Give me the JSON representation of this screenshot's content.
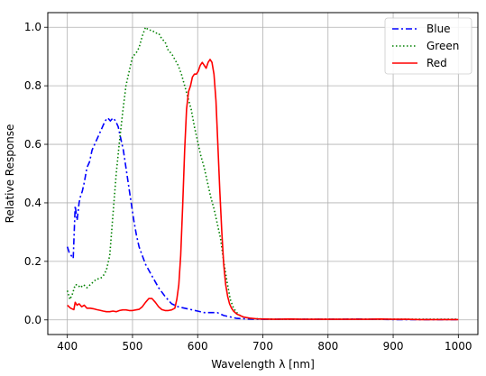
{
  "chart_data": {
    "type": "line",
    "title": "",
    "xlabel": "Wavelength λ [nm]",
    "ylabel": "Relative Response",
    "xlim": [
      370,
      1030
    ],
    "ylim": [
      -0.05,
      1.05
    ],
    "xticks": [
      400,
      500,
      600,
      700,
      800,
      900,
      1000
    ],
    "yticks": [
      0.0,
      0.2,
      0.4,
      0.6,
      0.8,
      1.0
    ],
    "xtick_labels": [
      "400",
      "500",
      "600",
      "700",
      "800",
      "900",
      "1000"
    ],
    "ytick_labels": [
      "0.0",
      "0.2",
      "0.4",
      "0.6",
      "0.8",
      "1.0"
    ],
    "grid": true,
    "legend_position": "top-right",
    "series": [
      {
        "name": "Blue",
        "color": "#0000ff",
        "style": "dashdot",
        "x": [
          400,
          403,
          406,
          409,
          412,
          415,
          418,
          420,
          423,
          426,
          430,
          434,
          438,
          442,
          446,
          450,
          454,
          458,
          462,
          466,
          470,
          474,
          478,
          482,
          486,
          490,
          494,
          498,
          502,
          506,
          510,
          515,
          520,
          525,
          530,
          540,
          550,
          560,
          570,
          580,
          590,
          600,
          610,
          620,
          630,
          640,
          650,
          660,
          680,
          700,
          720,
          740,
          760,
          780,
          800,
          820,
          840,
          860,
          880,
          900,
          920,
          940,
          960,
          980,
          1000
        ],
        "y": [
          0.25,
          0.23,
          0.22,
          0.21,
          0.39,
          0.34,
          0.4,
          0.42,
          0.44,
          0.47,
          0.52,
          0.54,
          0.58,
          0.6,
          0.62,
          0.64,
          0.66,
          0.68,
          0.69,
          0.68,
          0.69,
          0.68,
          0.66,
          0.62,
          0.58,
          0.52,
          0.46,
          0.4,
          0.34,
          0.29,
          0.25,
          0.22,
          0.19,
          0.17,
          0.15,
          0.11,
          0.08,
          0.055,
          0.045,
          0.04,
          0.035,
          0.03,
          0.025,
          0.025,
          0.025,
          0.015,
          0.01,
          0.005,
          0.003,
          0.002,
          0.002,
          0.003,
          0.002,
          0.002,
          0.002,
          0.002,
          0.003,
          0.002,
          0.002,
          0.001,
          0.001,
          0.001,
          0.001,
          0.001,
          0.001
        ]
      },
      {
        "name": "Green",
        "color": "#008000",
        "style": "dotted",
        "x": [
          400,
          404,
          408,
          412,
          416,
          420,
          425,
          430,
          435,
          440,
          445,
          450,
          455,
          460,
          465,
          470,
          475,
          480,
          485,
          490,
          495,
          500,
          505,
          510,
          515,
          520,
          525,
          530,
          535,
          540,
          545,
          550,
          555,
          560,
          565,
          570,
          575,
          580,
          585,
          590,
          595,
          600,
          605,
          610,
          615,
          620,
          625,
          630,
          635,
          640,
          645,
          650,
          655,
          660,
          665,
          670,
          680,
          700,
          720,
          760,
          800,
          840,
          880,
          920,
          960,
          1000
        ],
        "y": [
          0.1,
          0.07,
          0.09,
          0.12,
          0.12,
          0.11,
          0.12,
          0.11,
          0.12,
          0.13,
          0.14,
          0.14,
          0.15,
          0.17,
          0.22,
          0.36,
          0.5,
          0.61,
          0.71,
          0.8,
          0.85,
          0.9,
          0.91,
          0.93,
          0.97,
          1.0,
          0.99,
          0.99,
          0.98,
          0.98,
          0.96,
          0.95,
          0.92,
          0.91,
          0.89,
          0.87,
          0.84,
          0.8,
          0.76,
          0.72,
          0.66,
          0.61,
          0.56,
          0.52,
          0.47,
          0.42,
          0.38,
          0.33,
          0.28,
          0.2,
          0.13,
          0.07,
          0.04,
          0.025,
          0.015,
          0.01,
          0.005,
          0.003,
          0.002,
          0.002,
          0.002,
          0.002,
          0.002,
          0.002,
          0.002,
          0.002
        ]
      },
      {
        "name": "Red",
        "color": "#ff0000",
        "style": "solid",
        "x": [
          400,
          405,
          410,
          412,
          415,
          418,
          422,
          426,
          430,
          435,
          440,
          445,
          450,
          455,
          460,
          465,
          470,
          475,
          480,
          485,
          490,
          495,
          500,
          505,
          510,
          515,
          520,
          525,
          530,
          535,
          540,
          545,
          550,
          555,
          560,
          565,
          568,
          571,
          574,
          577,
          580,
          583,
          586,
          589,
          592,
          595,
          598,
          601,
          604,
          607,
          610,
          613,
          616,
          619,
          622,
          625,
          628,
          631,
          634,
          637,
          640,
          643,
          646,
          649,
          652,
          655,
          660,
          665,
          670,
          675,
          680,
          690,
          700,
          720,
          740,
          760,
          780,
          800,
          820,
          840,
          860,
          880,
          900,
          920,
          940,
          960,
          980,
          1000
        ],
        "y": [
          0.05,
          0.04,
          0.035,
          0.06,
          0.05,
          0.055,
          0.045,
          0.05,
          0.04,
          0.04,
          0.038,
          0.035,
          0.033,
          0.03,
          0.028,
          0.028,
          0.03,
          0.028,
          0.032,
          0.034,
          0.034,
          0.032,
          0.032,
          0.034,
          0.036,
          0.045,
          0.06,
          0.073,
          0.073,
          0.06,
          0.045,
          0.035,
          0.032,
          0.032,
          0.034,
          0.04,
          0.07,
          0.12,
          0.22,
          0.39,
          0.58,
          0.72,
          0.78,
          0.8,
          0.83,
          0.84,
          0.84,
          0.85,
          0.87,
          0.88,
          0.87,
          0.86,
          0.88,
          0.89,
          0.88,
          0.84,
          0.75,
          0.6,
          0.44,
          0.3,
          0.19,
          0.12,
          0.08,
          0.055,
          0.04,
          0.03,
          0.02,
          0.015,
          0.01,
          0.008,
          0.006,
          0.004,
          0.003,
          0.002,
          0.003,
          0.002,
          0.002,
          0.002,
          0.002,
          0.002,
          0.002,
          0.003,
          0.002,
          0.002,
          0.001,
          0.001,
          0.001,
          0.001
        ]
      }
    ]
  }
}
